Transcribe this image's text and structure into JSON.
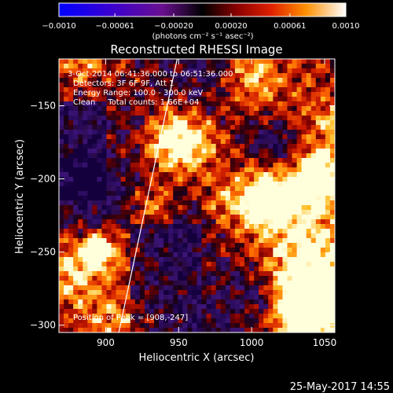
{
  "chart_data": {
    "type": "heatmap",
    "title": "Reconstructed RHESSI Image",
    "xlabel": "Heliocentric X (arcsec)",
    "ylabel": "Heliocentric Y (arcsec)",
    "xlim": [
      868,
      1057
    ],
    "ylim": [
      -305,
      -118
    ],
    "x_ticks": [
      900,
      950,
      1000,
      1050
    ],
    "y_ticks": [
      -150,
      -200,
      -250,
      -300
    ],
    "colorbar": {
      "min": -0.001,
      "max": 0.001,
      "tick_values": [
        -0.001,
        -0.00061,
        -0.0002,
        0.0002,
        0.00061,
        0.001
      ],
      "tick_labels": [
        "−0.0010",
        "−0.00061",
        "−0.00020",
        "0.00020",
        "0.00061",
        "0.0010"
      ],
      "units_label": "(photons cm⁻² s⁻¹ asec⁻²)"
    },
    "annotations": [
      "3-Oct-2014 06:41:36.000 to 06:51:36.000",
      "Detectors: 3F 6F 9F, Att 1",
      "Energy Range: 100.0 - 300.0 keV",
      "Clean     Total counts: 1.66E+04"
    ],
    "peak_label": "Position of Peak = [908,-247]",
    "peak_position": [
      908,
      -247
    ],
    "limb_line": [
      [
        909,
        -305
      ],
      [
        949,
        -118
      ]
    ],
    "grid": false
  },
  "footer": {
    "date": "25-May-2017 14:55"
  },
  "colors": {
    "background": "#000000",
    "text": "#ffffff",
    "limb": "#ffffff"
  }
}
